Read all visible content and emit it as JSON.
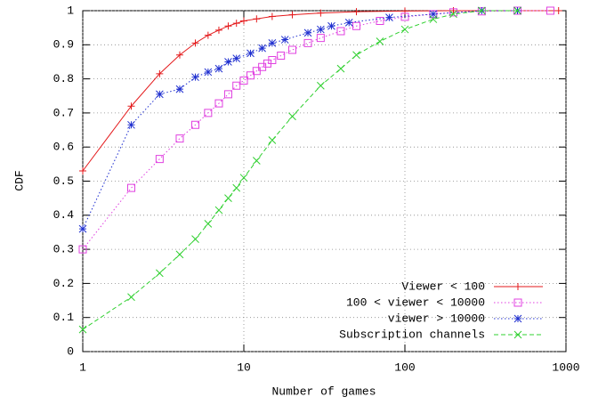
{
  "chart_data": {
    "type": "line",
    "xlabel": "Number of games",
    "ylabel": "CDF",
    "xscale": "log",
    "xlim": [
      1,
      1000
    ],
    "ylim": [
      0,
      1
    ],
    "xticks": [
      1,
      10,
      100,
      1000
    ],
    "yticks": [
      0,
      0.1,
      0.2,
      0.3,
      0.4,
      0.5,
      0.6,
      0.7,
      0.8,
      0.9,
      1
    ],
    "grid": true,
    "legend": "lower-right",
    "series": [
      {
        "name": "Viewer < 100",
        "color": "#e41a1c",
        "marker": "plus",
        "dash": "solid",
        "x": [
          1,
          2,
          3,
          4,
          5,
          6,
          7,
          8,
          9,
          10,
          12,
          15,
          20,
          30,
          50,
          100,
          200,
          500,
          900
        ],
        "values": [
          0.53,
          0.72,
          0.815,
          0.87,
          0.905,
          0.928,
          0.943,
          0.955,
          0.963,
          0.97,
          0.976,
          0.983,
          0.988,
          0.993,
          0.997,
          0.999,
          1,
          1,
          1
        ]
      },
      {
        "name": "100 < viewer < 10000",
        "color": "#e040e0",
        "marker": "square",
        "dash": "dotted",
        "x": [
          1,
          2,
          3,
          4,
          5,
          6,
          7,
          8,
          9,
          10,
          11,
          12,
          13,
          14,
          15,
          17,
          20,
          25,
          30,
          40,
          50,
          70,
          100,
          150,
          200,
          300,
          500,
          800
        ],
        "values": [
          0.3,
          0.48,
          0.565,
          0.625,
          0.665,
          0.7,
          0.728,
          0.755,
          0.78,
          0.795,
          0.81,
          0.823,
          0.835,
          0.845,
          0.855,
          0.868,
          0.885,
          0.905,
          0.92,
          0.94,
          0.955,
          0.97,
          0.982,
          0.99,
          0.995,
          0.998,
          1,
          1
        ]
      },
      {
        "name": "viewer > 10000",
        "color": "#2030d0",
        "marker": "star",
        "dash": "dotted",
        "x": [
          1,
          2,
          3,
          4,
          5,
          6,
          7,
          8,
          9,
          11,
          13,
          15,
          18,
          25,
          30,
          35,
          45,
          80,
          150,
          300,
          500
        ],
        "values": [
          0.36,
          0.665,
          0.755,
          0.77,
          0.805,
          0.82,
          0.83,
          0.85,
          0.86,
          0.875,
          0.89,
          0.905,
          0.915,
          0.935,
          0.945,
          0.955,
          0.965,
          0.98,
          0.99,
          1,
          1
        ]
      },
      {
        "name": "Subscription channels",
        "color": "#30d030",
        "marker": "cross",
        "dash": "dashed",
        "x": [
          1,
          2,
          3,
          4,
          5,
          6,
          7,
          8,
          9,
          10,
          12,
          15,
          20,
          30,
          40,
          50,
          70,
          100,
          150,
          200,
          300,
          500
        ],
        "values": [
          0.065,
          0.16,
          0.23,
          0.285,
          0.33,
          0.375,
          0.415,
          0.45,
          0.48,
          0.51,
          0.56,
          0.62,
          0.69,
          0.78,
          0.83,
          0.87,
          0.91,
          0.945,
          0.975,
          0.99,
          1,
          1
        ]
      }
    ]
  }
}
